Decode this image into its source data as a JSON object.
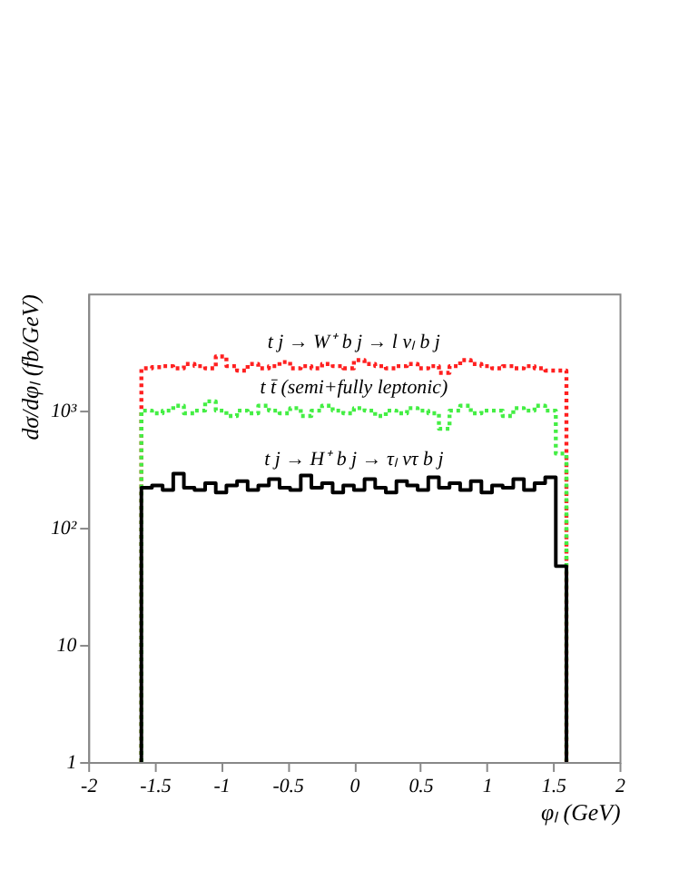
{
  "chart_data": {
    "type": "histogram",
    "xlabel": "φₗ (GeV)",
    "ylabel": "dσ/dφₗ (fb/GeV)",
    "bins": [
      -1.6,
      -1.52,
      -1.44,
      -1.36,
      -1.28,
      -1.2,
      -1.12,
      -1.04,
      -0.96,
      -0.88,
      -0.8,
      -0.72,
      -0.64,
      -0.56,
      -0.48,
      -0.4,
      -0.32,
      -0.24,
      -0.16,
      -0.08,
      0,
      0.08,
      0.16,
      0.24,
      0.32,
      0.4,
      0.48,
      0.56,
      0.64,
      0.72,
      0.8,
      0.88,
      0.96,
      1.04,
      1.12,
      1.2,
      1.28,
      1.36,
      1.44,
      1.52,
      1.6
    ],
    "series": [
      {
        "name": "t j → W⁺ b j → l νₗ b j",
        "color": "#ff2020",
        "line_style": "dotted",
        "values": [
          2300,
          2350,
          2400,
          2300,
          2500,
          2400,
          2300,
          2900,
          2400,
          2200,
          2500,
          2300,
          2400,
          2600,
          2300,
          2400,
          2300,
          2500,
          2400,
          2300,
          2700,
          2500,
          2400,
          2300,
          2400,
          2500,
          2300,
          2400,
          2100,
          2400,
          2700,
          2500,
          2400,
          2300,
          2400,
          2300,
          2400,
          2300,
          2200,
          2200
        ]
      },
      {
        "name": "t t̄ (semi+fully leptonic)",
        "color": "#44ee44",
        "line_style": "dotted",
        "values": [
          1000,
          950,
          1000,
          1100,
          950,
          1000,
          1200,
          1000,
          900,
          1000,
          950,
          1100,
          1000,
          950,
          1050,
          900,
          1000,
          1100,
          1000,
          950,
          1050,
          1000,
          900,
          1000,
          950,
          1050,
          1000,
          950,
          700,
          1000,
          1100,
          950,
          1000,
          1000,
          900,
          1050,
          1000,
          1100,
          1000,
          430
        ]
      },
      {
        "name": "t j → H⁺ b j → τₗ ντ b j",
        "color": "#000000",
        "line_style": "solid",
        "values": [
          220,
          230,
          210,
          290,
          220,
          210,
          240,
          200,
          230,
          250,
          210,
          230,
          260,
          220,
          210,
          280,
          220,
          240,
          200,
          230,
          210,
          260,
          220,
          200,
          250,
          230,
          210,
          270,
          220,
          240,
          210,
          250,
          200,
          230,
          220,
          260,
          210,
          240,
          270,
          47
        ]
      }
    ],
    "xlim": [
      -2,
      2
    ],
    "xticks": [
      -2,
      -1.5,
      -1,
      -0.5,
      0,
      0.5,
      1,
      1.5,
      2
    ],
    "log": true,
    "ylim": [
      1,
      10000
    ],
    "yticks": [
      1,
      10,
      {
        "value": 100,
        "label": "10²"
      },
      {
        "value": 1000,
        "label": "10³"
      }
    ],
    "grid": false
  }
}
